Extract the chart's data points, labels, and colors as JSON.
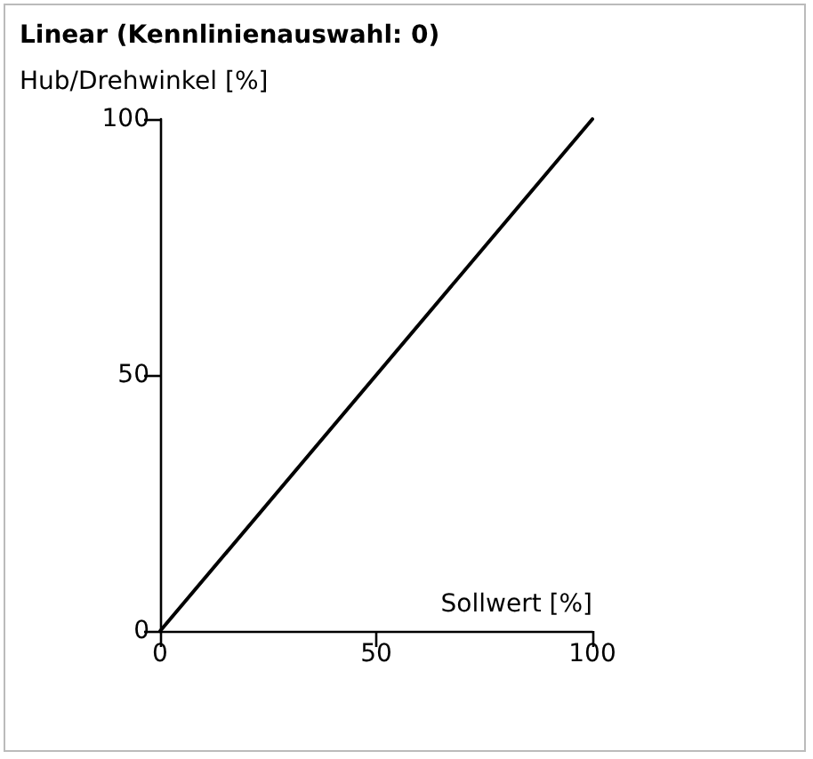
{
  "chart_data": {
    "type": "line",
    "title": "Linear (Kennlinienauswahl: 0)",
    "xlabel": "Sollwert [%]",
    "ylabel": "Hub/Drehwinkel [%]",
    "x": [
      0,
      100
    ],
    "series": [
      {
        "color": "#000000",
        "values": [
          0,
          100
        ]
      }
    ],
    "xlim": [
      0,
      100
    ],
    "xticks": [
      0,
      50,
      100
    ],
    "ylim": [
      0,
      100
    ],
    "yticks": [
      0,
      50,
      100
    ],
    "grid": false,
    "marker": "none",
    "line_style": "solid"
  }
}
